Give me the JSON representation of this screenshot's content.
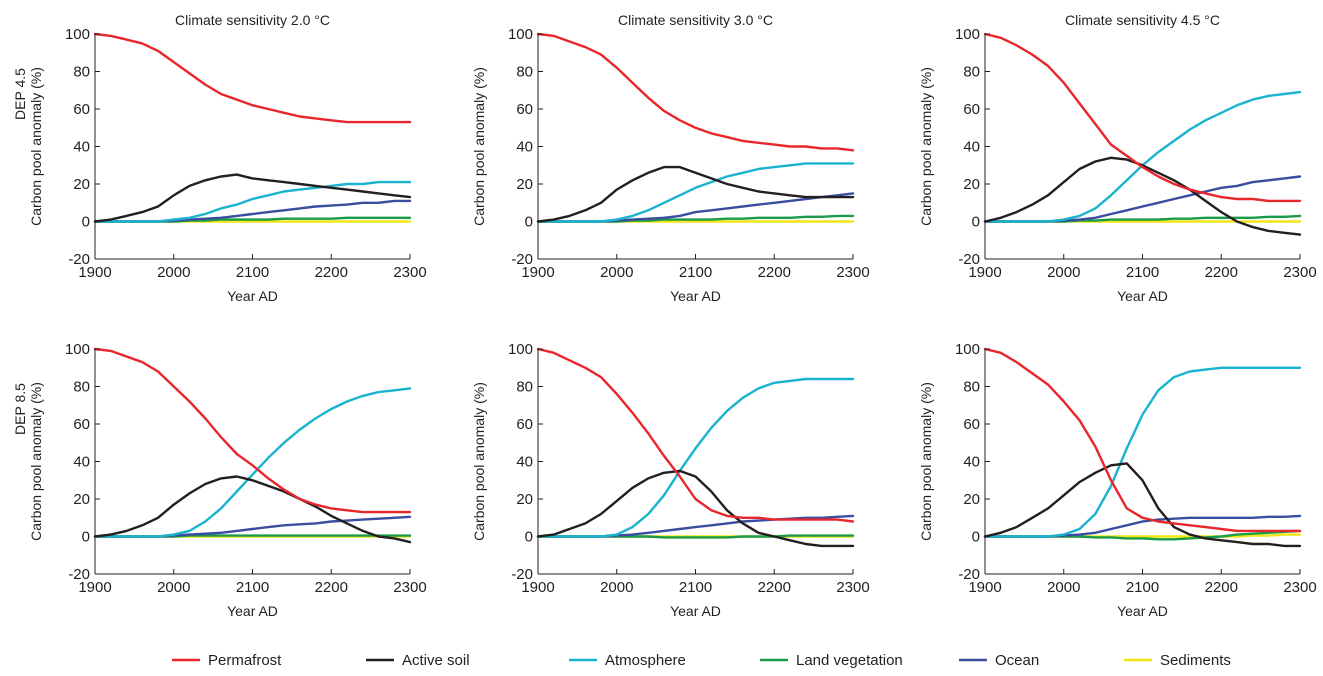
{
  "chart_data": {
    "type": "line",
    "xlabel": "Year AD",
    "ylabel": "Carbon pool anomaly (%)",
    "xlim": [
      1900,
      2300
    ],
    "ylim": [
      -20,
      100
    ],
    "xticks": [
      1900,
      2000,
      2100,
      2200,
      2300
    ],
    "yticks": [
      -20,
      0,
      20,
      40,
      60,
      80,
      100
    ],
    "grid": false,
    "legend_position": "bottom",
    "column_titles": [
      "Climate sensitivity 2.0 °C",
      "Climate sensitivity 3.0 °C",
      "Climate sensitivity 4.5 °C"
    ],
    "row_labels": [
      "DEP 4.5",
      "DEP 8.5"
    ],
    "legend": [
      {
        "name": "Permafrost",
        "color": "#e8262b"
      },
      {
        "name": "Active soil",
        "color": "#231f20"
      },
      {
        "name": "Atmosphere",
        "color": "#1ab3cf"
      },
      {
        "name": "Land vegetation",
        "color": "#1a9b48"
      },
      {
        "name": "Ocean",
        "color": "#3b4da0"
      },
      {
        "name": "Sediments",
        "color": "#f2e515"
      }
    ],
    "x": [
      1900,
      1920,
      1940,
      1960,
      1980,
      2000,
      2020,
      2040,
      2060,
      2080,
      2100,
      2120,
      2140,
      2160,
      2180,
      2200,
      2220,
      2240,
      2260,
      2280,
      2300
    ],
    "panels": [
      {
        "title": "Climate sensitivity 2.0 °C",
        "row": "DEP 4.5",
        "series": [
          {
            "name": "Permafrost",
            "values": [
              100,
              99,
              97,
              95,
              91,
              85,
              79,
              73,
              68,
              65,
              62,
              60,
              58,
              56,
              55,
              54,
              53,
              53,
              53,
              53,
              53
            ]
          },
          {
            "name": "Active soil",
            "values": [
              0,
              1,
              3,
              5,
              8,
              14,
              19,
              22,
              24,
              25,
              23,
              22,
              21,
              20,
              19,
              18,
              17,
              16,
              15,
              14,
              13
            ]
          },
          {
            "name": "Atmosphere",
            "values": [
              0,
              0,
              0,
              0,
              0,
              1,
              2,
              4,
              7,
              9,
              12,
              14,
              16,
              17,
              18,
              19,
              20,
              20,
              21,
              21,
              21
            ]
          },
          {
            "name": "Land vegetation",
            "values": [
              0,
              0,
              0,
              0,
              0,
              0,
              0.5,
              0.5,
              1,
              1,
              1,
              1,
              1.5,
              1.5,
              1.5,
              1.5,
              2,
              2,
              2,
              2,
              2
            ]
          },
          {
            "name": "Ocean",
            "values": [
              0,
              0,
              0,
              0,
              0,
              0.5,
              1,
              1.5,
              2,
              3,
              4,
              5,
              6,
              7,
              8,
              8.5,
              9,
              10,
              10,
              11,
              11
            ]
          },
          {
            "name": "Sediments",
            "values": [
              0,
              0,
              0,
              0,
              0,
              0,
              0,
              0,
              0,
              0,
              0,
              0,
              0,
              0,
              0,
              0,
              0,
              0,
              0,
              0,
              0
            ]
          }
        ]
      },
      {
        "title": "Climate sensitivity 3.0 °C",
        "row": "DEP 4.5",
        "series": [
          {
            "name": "Permafrost",
            "values": [
              100,
              99,
              96,
              93,
              89,
              82,
              74,
              66,
              59,
              54,
              50,
              47,
              45,
              43,
              42,
              41,
              40,
              40,
              39,
              39,
              38
            ]
          },
          {
            "name": "Active soil",
            "values": [
              0,
              1,
              3,
              6,
              10,
              17,
              22,
              26,
              29,
              29,
              26,
              23,
              20,
              18,
              16,
              15,
              14,
              13,
              13,
              13,
              13
            ]
          },
          {
            "name": "Atmosphere",
            "values": [
              0,
              0,
              0,
              0,
              0,
              1,
              3,
              6,
              10,
              14,
              18,
              21,
              24,
              26,
              28,
              29,
              30,
              31,
              31,
              31,
              31
            ]
          },
          {
            "name": "Land vegetation",
            "values": [
              0,
              0,
              0,
              0,
              0,
              0,
              0.5,
              0.5,
              1,
              1,
              1,
              1,
              1.5,
              1.5,
              2,
              2,
              2,
              2.5,
              2.5,
              3,
              3
            ]
          },
          {
            "name": "Ocean",
            "values": [
              0,
              0,
              0,
              0,
              0,
              0.5,
              1,
              1.5,
              2,
              3,
              5,
              6,
              7,
              8,
              9,
              10,
              11,
              12,
              13,
              14,
              15
            ]
          },
          {
            "name": "Sediments",
            "values": [
              0,
              0,
              0,
              0,
              0,
              0,
              0,
              0,
              0,
              0,
              0,
              0,
              0,
              0,
              0,
              0,
              0,
              0,
              0,
              0,
              0
            ]
          }
        ]
      },
      {
        "title": "Climate sensitivity 4.5 °C",
        "row": "DEP 4.5",
        "series": [
          {
            "name": "Permafrost",
            "values": [
              100,
              98,
              94,
              89,
              83,
              74,
              63,
              52,
              41,
              35,
              29,
              24,
              20,
              17,
              15,
              13,
              12,
              12,
              11,
              11,
              11
            ]
          },
          {
            "name": "Active soil",
            "values": [
              0,
              2,
              5,
              9,
              14,
              21,
              28,
              32,
              34,
              33,
              30,
              26,
              22,
              17,
              11,
              5,
              0,
              -3,
              -5,
              -6,
              -7
            ]
          },
          {
            "name": "Atmosphere",
            "values": [
              0,
              0,
              0,
              0,
              0,
              1,
              3,
              7,
              14,
              22,
              30,
              37,
              43,
              49,
              54,
              58,
              62,
              65,
              67,
              68,
              69
            ]
          },
          {
            "name": "Land vegetation",
            "values": [
              0,
              0,
              0,
              0,
              0,
              0,
              0.5,
              0.5,
              1,
              1,
              1,
              1,
              1.5,
              1.5,
              2,
              2,
              2,
              2,
              2.5,
              2.5,
              3
            ]
          },
          {
            "name": "Ocean",
            "values": [
              0,
              0,
              0,
              0,
              0,
              0.5,
              1,
              2,
              4,
              6,
              8,
              10,
              12,
              14,
              16,
              18,
              19,
              21,
              22,
              23,
              24
            ]
          },
          {
            "name": "Sediments",
            "values": [
              0,
              0,
              0,
              0,
              0,
              0,
              0,
              0,
              0,
              0,
              0,
              0,
              0,
              0,
              0,
              0,
              0,
              0,
              0,
              0,
              0
            ]
          }
        ]
      },
      {
        "title": "Climate sensitivity 2.0 °C",
        "row": "DEP 8.5",
        "series": [
          {
            "name": "Permafrost",
            "values": [
              100,
              99,
              96,
              93,
              88,
              80,
              72,
              63,
              53,
              44,
              38,
              31,
              25,
              20,
              17,
              15,
              14,
              13,
              13,
              13,
              13
            ]
          },
          {
            "name": "Active soil",
            "values": [
              0,
              1,
              3,
              6,
              10,
              17,
              23,
              28,
              31,
              32,
              30,
              27,
              24,
              20,
              16,
              11,
              7,
              3,
              0,
              -1,
              -3
            ]
          },
          {
            "name": "Atmosphere",
            "values": [
              0,
              0,
              0,
              0,
              0,
              1,
              3,
              8,
              15,
              24,
              33,
              42,
              50,
              57,
              63,
              68,
              72,
              75,
              77,
              78,
              79
            ]
          },
          {
            "name": "Land vegetation",
            "values": [
              0,
              0,
              0,
              0,
              0,
              0,
              0.5,
              0.5,
              0.5,
              0.5,
              0.5,
              0.5,
              0.5,
              0.5,
              0.5,
              0.5,
              0.5,
              0.5,
              0.5,
              0.5,
              0.5
            ]
          },
          {
            "name": "Ocean",
            "values": [
              0,
              0,
              0,
              0,
              0,
              0.5,
              1,
              1.5,
              2,
              3,
              4,
              5,
              6,
              6.5,
              7,
              8,
              8.5,
              9,
              9.5,
              10,
              10.5
            ]
          },
          {
            "name": "Sediments",
            "values": [
              0,
              0,
              0,
              0,
              0,
              0,
              0,
              0,
              0,
              0,
              0,
              0,
              0,
              0,
              0,
              0,
              0,
              0,
              0,
              0,
              0
            ]
          }
        ]
      },
      {
        "title": "Climate sensitivity 3.0 °C",
        "row": "DEP 8.5",
        "series": [
          {
            "name": "Permafrost",
            "values": [
              100,
              98,
              94,
              90,
              85,
              76,
              66,
              55,
              43,
              32,
              20,
              14,
              11,
              10,
              10,
              9,
              9,
              9,
              9,
              9,
              8
            ]
          },
          {
            "name": "Active soil",
            "values": [
              0,
              1,
              4,
              7,
              12,
              19,
              26,
              31,
              34,
              35,
              32,
              24,
              14,
              7,
              2,
              0,
              -2,
              -4,
              -5,
              -5,
              -5
            ]
          },
          {
            "name": "Atmosphere",
            "values": [
              0,
              0,
              0,
              0,
              0,
              1,
              5,
              12,
              22,
              35,
              47,
              58,
              67,
              74,
              79,
              82,
              83,
              84,
              84,
              84,
              84
            ]
          },
          {
            "name": "Land vegetation",
            "values": [
              0,
              0,
              0,
              0,
              0,
              0,
              0,
              0,
              -0.5,
              -0.5,
              -0.5,
              -0.5,
              -0.5,
              0,
              0,
              0,
              0.5,
              0.5,
              0.5,
              0.5,
              0.5
            ]
          },
          {
            "name": "Ocean",
            "values": [
              0,
              0,
              0,
              0,
              0,
              0.5,
              1,
              2,
              3,
              4,
              5,
              6,
              7,
              8,
              8.5,
              9,
              9.5,
              10,
              10,
              10.5,
              11
            ]
          },
          {
            "name": "Sediments",
            "values": [
              0,
              0,
              0,
              0,
              0,
              0,
              0,
              0,
              0,
              0,
              0,
              0,
              0,
              0,
              0,
              0,
              0,
              0,
              0,
              0,
              0
            ]
          }
        ]
      },
      {
        "title": "Climate sensitivity 4.5 °C",
        "row": "DEP 8.5",
        "series": [
          {
            "name": "Permafrost",
            "values": [
              100,
              98,
              93,
              87,
              81,
              72,
              62,
              48,
              30,
              15,
              10,
              8,
              7,
              6,
              5,
              4,
              3,
              3,
              3,
              3,
              3
            ]
          },
          {
            "name": "Active soil",
            "values": [
              0,
              2,
              5,
              10,
              15,
              22,
              29,
              34,
              38,
              39,
              30,
              15,
              5,
              1,
              -1,
              -2,
              -3,
              -4,
              -4,
              -5,
              -5
            ]
          },
          {
            "name": "Atmosphere",
            "values": [
              0,
              0,
              0,
              0,
              0,
              1,
              4,
              12,
              27,
              47,
              65,
              78,
              85,
              88,
              89,
              90,
              90,
              90,
              90,
              90,
              90
            ]
          },
          {
            "name": "Land vegetation",
            "values": [
              0,
              0,
              0,
              0,
              0,
              0,
              0,
              -0.5,
              -0.5,
              -1,
              -1,
              -1.5,
              -1.5,
              -1,
              -0.5,
              0,
              1,
              1.5,
              2,
              2.5,
              3
            ]
          },
          {
            "name": "Ocean",
            "values": [
              0,
              0,
              0,
              0,
              0,
              0.5,
              1,
              2,
              4,
              6,
              8,
              9,
              9.5,
              10,
              10,
              10,
              10,
              10,
              10.5,
              10.5,
              11
            ]
          },
          {
            "name": "Sediments",
            "values": [
              0,
              0,
              0,
              0,
              0,
              0,
              0,
              0,
              0,
              0,
              0,
              0,
              0,
              0,
              0,
              0,
              0,
              0.5,
              0.5,
              1,
              1
            ]
          }
        ]
      }
    ]
  }
}
